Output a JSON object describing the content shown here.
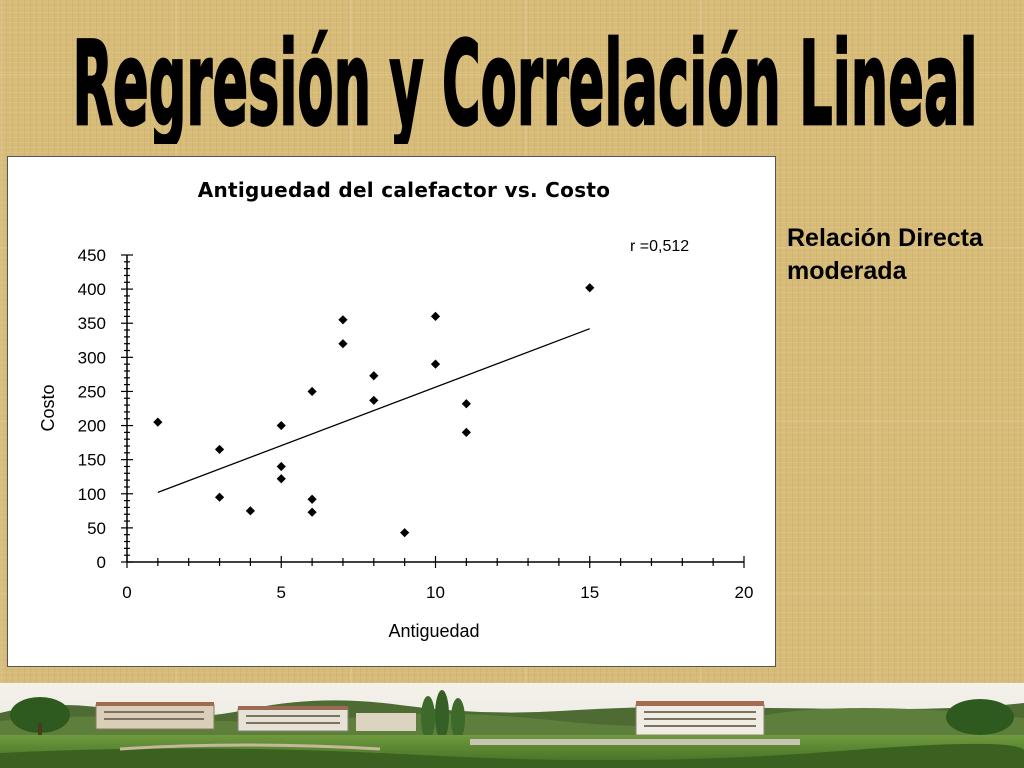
{
  "slide": {
    "title": "Regresión y Correlación Lineal",
    "note": "Relación Directa moderada"
  },
  "colors": {
    "background": "#d7bb78",
    "title": "#000000",
    "points": "#000000"
  },
  "chart_data": {
    "type": "scatter",
    "title": "Antiguedad del calefactor vs. Costo",
    "xlabel": "Antiguedad",
    "ylabel": "Costo",
    "xlim": [
      0,
      20
    ],
    "ylim": [
      0,
      450
    ],
    "xticks": [
      0,
      5,
      10,
      15,
      20
    ],
    "yticks": [
      0,
      50,
      100,
      150,
      200,
      250,
      300,
      350,
      400,
      450
    ],
    "grid": false,
    "annotation": "r =0,512",
    "points": [
      {
        "x": 1,
        "y": 205
      },
      {
        "x": 3,
        "y": 165
      },
      {
        "x": 3,
        "y": 95
      },
      {
        "x": 4,
        "y": 75
      },
      {
        "x": 5,
        "y": 200
      },
      {
        "x": 5,
        "y": 140
      },
      {
        "x": 5,
        "y": 122
      },
      {
        "x": 6,
        "y": 250
      },
      {
        "x": 6,
        "y": 92
      },
      {
        "x": 6,
        "y": 73
      },
      {
        "x": 7,
        "y": 355
      },
      {
        "x": 7,
        "y": 320
      },
      {
        "x": 8,
        "y": 273
      },
      {
        "x": 8,
        "y": 237
      },
      {
        "x": 9,
        "y": 43
      },
      {
        "x": 10,
        "y": 360
      },
      {
        "x": 10,
        "y": 290
      },
      {
        "x": 11,
        "y": 232
      },
      {
        "x": 11,
        "y": 190
      },
      {
        "x": 15,
        "y": 402
      }
    ],
    "trendline": {
      "x": [
        1,
        15
      ],
      "y": [
        102,
        342
      ]
    }
  }
}
